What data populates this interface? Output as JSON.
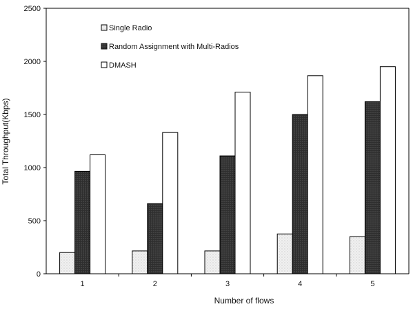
{
  "chart_data": {
    "type": "bar",
    "xlabel": "Number of flows",
    "ylabel": "Total Throughput(Kbps)",
    "categories": [
      "1",
      "2",
      "3",
      "4",
      "5"
    ],
    "ylim": [
      0,
      2500
    ],
    "yticks": [
      "0",
      "500",
      "1000",
      "1500",
      "2000",
      "2500"
    ],
    "grid": false,
    "legend_position": "top-left",
    "series": [
      {
        "name": "Single Radio",
        "values": [
          200,
          215,
          215,
          375,
          350
        ],
        "color": "#e8e8e8",
        "pattern": "speckled-light"
      },
      {
        "name": "Random Assignment with Multi-Radios",
        "values": [
          965,
          660,
          1110,
          1500,
          1620
        ],
        "color": "#3a3a3a",
        "pattern": "dark-dotted"
      },
      {
        "name": "DMASH",
        "values": [
          1120,
          1330,
          1710,
          1865,
          1950
        ],
        "color": "#ffffff",
        "pattern": "none"
      }
    ]
  }
}
